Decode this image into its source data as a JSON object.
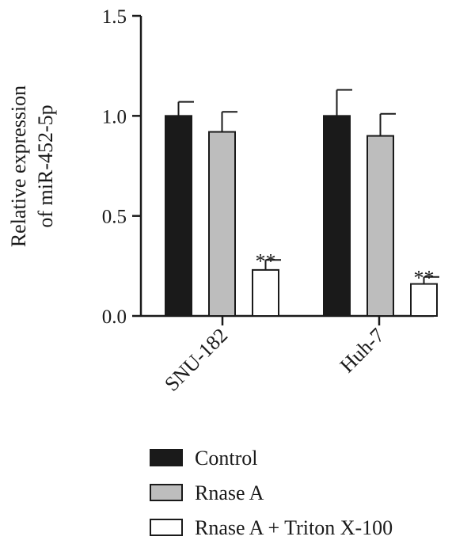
{
  "chart_data": {
    "type": "bar",
    "categories": [
      "SNU-182",
      "Huh-7"
    ],
    "ylabel_lines": [
      "Relative expression",
      "of miR-452-5p"
    ],
    "ylim": [
      0,
      1.5
    ],
    "yticks": [
      "0.0",
      "0.5",
      "1.0",
      "1.5"
    ],
    "ytick_values": [
      0,
      0.5,
      1.0,
      1.5
    ],
    "series": [
      {
        "name": "Control",
        "color": "#1a1a1a",
        "values": [
          1.0,
          1.0
        ],
        "errors": [
          0.07,
          0.13
        ]
      },
      {
        "name": "Rnase A",
        "color": "#bdbdbd",
        "values": [
          0.92,
          0.9
        ],
        "errors": [
          0.1,
          0.11
        ]
      },
      {
        "name": "Rnase A + Triton X-100",
        "color": "#ffffff",
        "values": [
          0.23,
          0.16
        ],
        "errors": [
          0.05,
          0.035
        ]
      }
    ],
    "annotations": [
      {
        "text": "**",
        "category": "SNU-182",
        "series": "Rnase A + Triton X-100"
      },
      {
        "text": "**",
        "category": "Huh-7",
        "series": "Rnase A + Triton X-100"
      }
    ],
    "legend_position": "bottom",
    "grid": false
  }
}
